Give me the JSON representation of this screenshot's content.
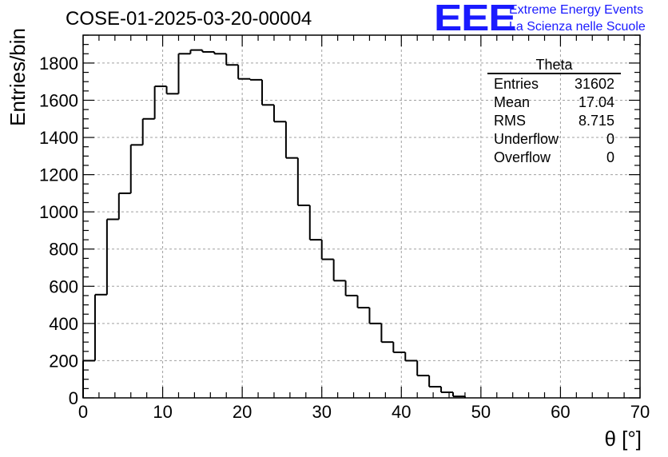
{
  "header": {
    "run_title": "COSE-01-2025-03-20-00004",
    "logo_text": "EEE",
    "logo_line1": "Extreme Energy Events",
    "logo_line2": "La Scienza nelle Scuole"
  },
  "stats_box": {
    "title": "Theta",
    "rows": [
      {
        "label": "Entries",
        "value": "31602"
      },
      {
        "label": "Mean",
        "value": "17.04"
      },
      {
        "label": "RMS",
        "value": "8.715"
      },
      {
        "label": "Underflow",
        "value": "0"
      },
      {
        "label": "Overflow",
        "value": "0"
      }
    ]
  },
  "colors": {
    "line": "#000000",
    "grid": "#a0a0a0",
    "logo": "#1a1aff"
  },
  "chart_data": {
    "type": "histogram",
    "title": "COSE-01-2025-03-20-00004",
    "xlabel": "θ [°]",
    "ylabel": "Entries/bin",
    "xlim": [
      0,
      70
    ],
    "ylim": [
      0,
      1950
    ],
    "xticks": [
      0,
      10,
      20,
      30,
      40,
      50,
      60,
      70
    ],
    "yticks": [
      0,
      200,
      400,
      600,
      800,
      1000,
      1200,
      1400,
      1600,
      1800
    ],
    "grid": true,
    "bin_width": 1.5,
    "bin_start": 0,
    "values": [
      200,
      555,
      960,
      1100,
      1360,
      1500,
      1675,
      1635,
      1850,
      1870,
      1860,
      1850,
      1790,
      1715,
      1710,
      1575,
      1485,
      1290,
      1035,
      850,
      745,
      630,
      550,
      485,
      400,
      300,
      245,
      200,
      120,
      60,
      30,
      8
    ]
  }
}
